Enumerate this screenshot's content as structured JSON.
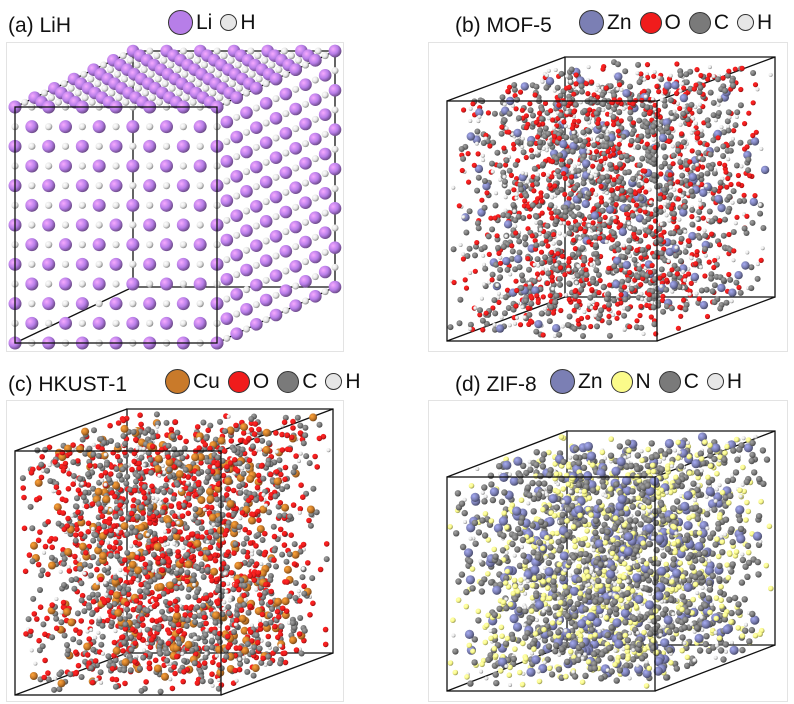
{
  "panels": [
    {
      "title": "(a) LiH",
      "legend": [
        {
          "label": "Li",
          "color": "#b77ee8"
        },
        {
          "label": "H",
          "color": "#e6e6e6"
        }
      ]
    },
    {
      "title": "(b) MOF-5",
      "legend": [
        {
          "label": "Zn",
          "color": "#7b7fb4"
        },
        {
          "label": "O",
          "color": "#f01c1c"
        },
        {
          "label": "C",
          "color": "#7a7a7a"
        },
        {
          "label": "H",
          "color": "#e6e6e6"
        }
      ]
    },
    {
      "title": "(c) HKUST-1",
      "legend": [
        {
          "label": "Cu",
          "color": "#c97a2a"
        },
        {
          "label": "O",
          "color": "#f01c1c"
        },
        {
          "label": "C",
          "color": "#7a7a7a"
        },
        {
          "label": "H",
          "color": "#e6e6e6"
        }
      ]
    },
    {
      "title": "(d) ZIF-8",
      "legend": [
        {
          "label": "Zn",
          "color": "#7b7fb4"
        },
        {
          "label": "N",
          "color": "#fbfb8a"
        },
        {
          "label": "C",
          "color": "#7a7a7a"
        },
        {
          "label": "H",
          "color": "#e6e6e6"
        }
      ]
    }
  ]
}
